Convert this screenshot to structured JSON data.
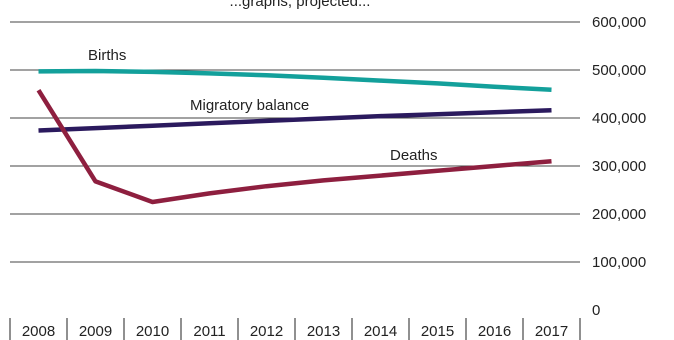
{
  "chart_data": {
    "type": "line",
    "title_fragment": "...graphs, projected...",
    "x": [
      "2008",
      "2009",
      "2010",
      "2011",
      "2012",
      "2013",
      "2014",
      "2015",
      "2016",
      "2017"
    ],
    "ylim": [
      0,
      600000
    ],
    "yticks": [
      "0",
      "100,000",
      "200,000",
      "300,000",
      "400,000",
      "500,000",
      "600,000"
    ],
    "grid": true,
    "series": [
      {
        "name": "Births",
        "color": "#13a09b",
        "values": [
          497000,
          498000,
          496000,
          493000,
          489000,
          484000,
          478000,
          472000,
          465000,
          459000
        ]
      },
      {
        "name": "Migratory balance",
        "color": "#2b1a5e",
        "values": [
          374000,
          379000,
          384000,
          389000,
          394000,
          399000,
          404000,
          408000,
          412000,
          416000
        ]
      },
      {
        "name": "Deaths",
        "color": "#8e1f3f",
        "values": [
          458000,
          268000,
          225000,
          243000,
          258000,
          270000,
          280000,
          290000,
          300000,
          310000
        ]
      }
    ]
  }
}
